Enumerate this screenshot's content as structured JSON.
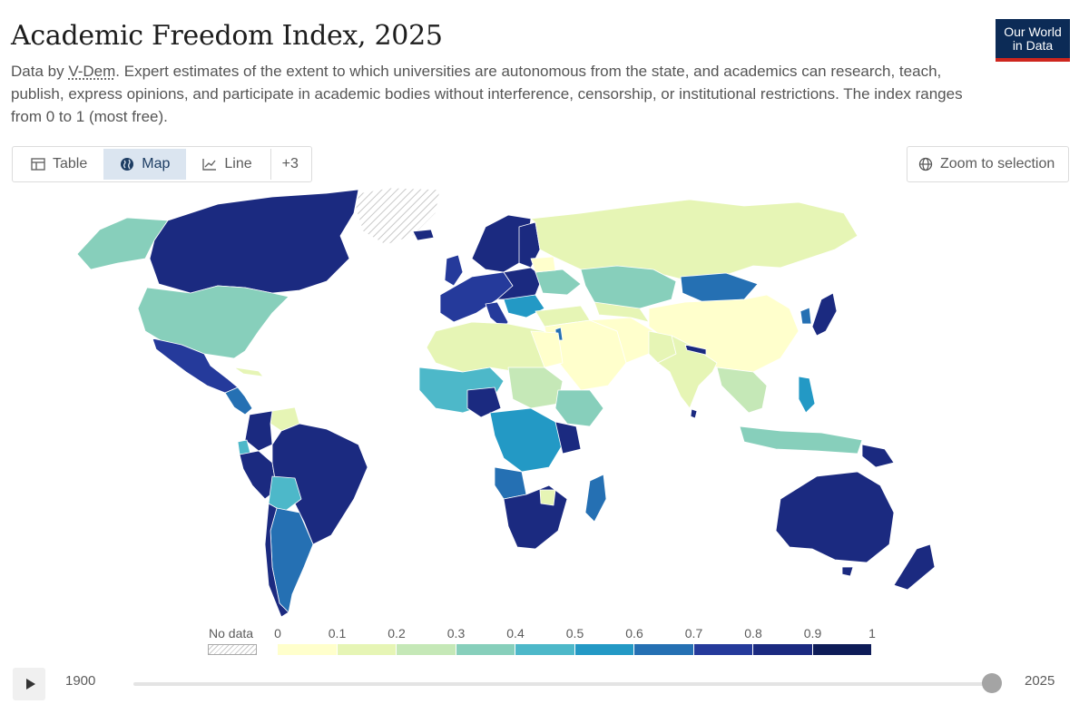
{
  "header": {
    "title": "Academic Freedom Index, 2025",
    "subtitle_prefix": "Data by ",
    "source": "V-Dem",
    "subtitle_rest": ". Expert estimates of the extent to which universities are autonomous from the state, and academics can research, teach, publish, express opinions, and participate in academic bodies without interference, censorship, or institutional restrictions. The index ranges from 0 to 1 (most free).",
    "logo_line1": "Our World",
    "logo_line2": "in Data"
  },
  "tabs": [
    {
      "label": "Table",
      "icon": "table-icon",
      "active": false
    },
    {
      "label": "Map",
      "icon": "globe-icon",
      "active": true
    },
    {
      "label": "Line",
      "icon": "line-chart-icon",
      "active": false
    },
    {
      "label": "+3",
      "icon": "",
      "active": false
    }
  ],
  "zoom_button": {
    "label": "Zoom to selection",
    "icon": "globe-icon"
  },
  "legend": {
    "no_data_label": "No data",
    "ticks": [
      "0",
      "0.1",
      "0.2",
      "0.3",
      "0.4",
      "0.5",
      "0.6",
      "0.7",
      "0.8",
      "0.9",
      "1"
    ],
    "colors": [
      "#ffffcc",
      "#e6f5b5",
      "#c5e8b7",
      "#87cfbb",
      "#4db8c9",
      "#2399c5",
      "#2570b3",
      "#253a9b",
      "#1b2a80",
      "#0e1c58"
    ]
  },
  "timeline": {
    "start_year": "1900",
    "end_year": "2025",
    "selected_year": "2025"
  },
  "colors": {
    "logo_bg": "#0c2b56",
    "logo_accent": "#ce261e",
    "active_tab_bg": "#dbe5f0"
  }
}
